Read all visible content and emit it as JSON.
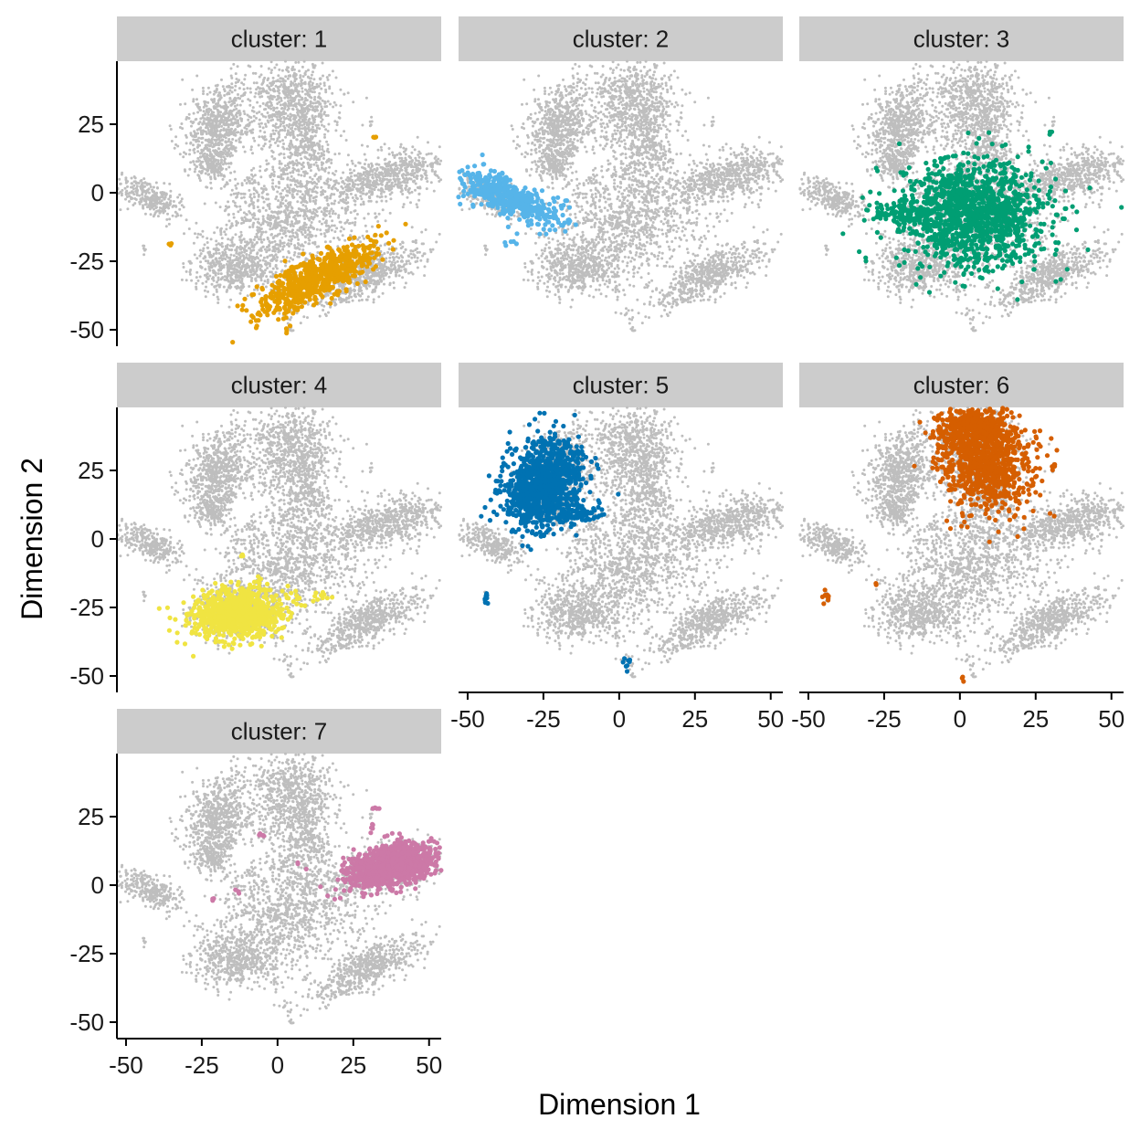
{
  "chart_data": {
    "type": "scatter",
    "facet_variable": "cluster",
    "facets": [
      {
        "label": "cluster: 1",
        "highlight_color": "#E69F00",
        "highlight": [
          {
            "cx": 13,
            "cy": -31,
            "sx": 11,
            "sy": 3.5,
            "rot": 30,
            "n": 700
          },
          {
            "cx": 2,
            "cy": -45,
            "sx": 1.2,
            "sy": 4,
            "rot": 20,
            "n": 12
          },
          {
            "cx": 32,
            "cy": 20,
            "sx": 0.4,
            "sy": 0.4,
            "rot": 0,
            "n": 3
          },
          {
            "cx": -36,
            "cy": -19,
            "sx": 0.5,
            "sy": 0.6,
            "rot": 0,
            "n": 3
          }
        ]
      },
      {
        "label": "cluster: 2",
        "highlight_color": "#56B4E9",
        "highlight": [
          {
            "cx": -38,
            "cy": -1,
            "sx": 9,
            "sy": 3,
            "rot": -28,
            "n": 500
          },
          {
            "cx": -23,
            "cy": -8,
            "sx": 3,
            "sy": 1.5,
            "rot": 0,
            "n": 20
          },
          {
            "cx": -35,
            "cy": -18,
            "sx": 2,
            "sy": 1,
            "rot": 0,
            "n": 6
          },
          {
            "cx": -18,
            "cy": -3,
            "sx": 1,
            "sy": 1,
            "rot": 0,
            "n": 3
          },
          {
            "cx": -17,
            "cy": -11,
            "sx": 0.7,
            "sy": 0.7,
            "rot": 0,
            "n": 3
          }
        ]
      },
      {
        "label": "cluster: 3",
        "highlight_color": "#009E73",
        "highlight": [
          {
            "cx": 5,
            "cy": -8,
            "sx": 12,
            "sy": 10,
            "rot": 0,
            "n": 1300
          },
          {
            "cx": -17,
            "cy": -8,
            "sx": 6,
            "sy": 3,
            "rot": 0,
            "n": 120
          },
          {
            "cx": 30,
            "cy": 22,
            "sx": 0.4,
            "sy": 0.4,
            "rot": 0,
            "n": 3
          }
        ]
      },
      {
        "label": "cluster: 4",
        "highlight_color": "#F0E442",
        "highlight": [
          {
            "cx": -13,
            "cy": -27,
            "sx": 8,
            "sy": 4.5,
            "rot": 5,
            "n": 800
          },
          {
            "cx": -12,
            "cy": -20,
            "sx": 2,
            "sy": 1,
            "rot": 0,
            "n": 20
          },
          {
            "cx": 16,
            "cy": -21,
            "sx": 1.5,
            "sy": 1,
            "rot": 0,
            "n": 8
          },
          {
            "cx": -12,
            "cy": -6,
            "sx": 0.5,
            "sy": 0.5,
            "rot": 0,
            "n": 3
          }
        ]
      },
      {
        "label": "cluster: 5",
        "highlight_color": "#0072B2",
        "highlight": [
          {
            "cx": -25,
            "cy": 20,
            "sx": 6,
            "sy": 8,
            "rot": -20,
            "n": 1100
          },
          {
            "cx": -14,
            "cy": 9,
            "sx": 4,
            "sy": 1.5,
            "rot": 0,
            "n": 80
          },
          {
            "cx": -44,
            "cy": -22,
            "sx": 0.4,
            "sy": 1.2,
            "rot": 0,
            "n": 10
          },
          {
            "cx": 2,
            "cy": -46,
            "sx": 1,
            "sy": 2,
            "rot": 0,
            "n": 8
          },
          {
            "cx": -7,
            "cy": 13,
            "sx": 0.8,
            "sy": 0.8,
            "rot": 0,
            "n": 3
          },
          {
            "cx": -25,
            "cy": 1,
            "sx": 1,
            "sy": 0.5,
            "rot": 0,
            "n": 4
          }
        ]
      },
      {
        "label": "cluster: 6",
        "highlight_color": "#D55E00",
        "highlight": [
          {
            "cx": 8,
            "cy": 30,
            "sx": 7,
            "sy": 10,
            "rot": 18,
            "n": 1000
          },
          {
            "cx": 4,
            "cy": 41,
            "sx": 6,
            "sy": 2.5,
            "rot": 0,
            "n": 250
          },
          {
            "cx": -44,
            "cy": -21,
            "sx": 0.5,
            "sy": 1.2,
            "rot": 0,
            "n": 10
          },
          {
            "cx": 31,
            "cy": 27,
            "sx": 0.7,
            "sy": 0.4,
            "rot": 0,
            "n": 4
          },
          {
            "cx": 1,
            "cy": -51,
            "sx": 0.4,
            "sy": 0.6,
            "rot": 0,
            "n": 3
          },
          {
            "cx": -28,
            "cy": -16,
            "sx": 0.4,
            "sy": 0.4,
            "rot": 0,
            "n": 2
          },
          {
            "cx": 0,
            "cy": 13,
            "sx": 0.3,
            "sy": 0.3,
            "rot": 0,
            "n": 2
          }
        ]
      },
      {
        "label": "cluster: 7",
        "highlight_color": "#CC79A7",
        "highlight": [
          {
            "cx": 37,
            "cy": 7,
            "sx": 8,
            "sy": 3.5,
            "rot": 12,
            "n": 900
          },
          {
            "cx": 42,
            "cy": 10,
            "sx": 3,
            "sy": 3,
            "rot": 0,
            "n": 200
          },
          {
            "cx": 32,
            "cy": 28,
            "sx": 0.6,
            "sy": 0.6,
            "rot": 0,
            "n": 5
          },
          {
            "cx": 31,
            "cy": 21,
            "sx": 0.4,
            "sy": 0.8,
            "rot": 0,
            "n": 5
          },
          {
            "cx": -5,
            "cy": 18,
            "sx": 0.6,
            "sy": 0.8,
            "rot": 0,
            "n": 6
          },
          {
            "cx": -13,
            "cy": -2,
            "sx": 0.5,
            "sy": 0.5,
            "rot": 0,
            "n": 3
          },
          {
            "cx": -21,
            "cy": -5,
            "sx": 0.5,
            "sy": 0.5,
            "rot": 0,
            "n": 3
          },
          {
            "cx": 7,
            "cy": 8,
            "sx": 0.3,
            "sy": 0.3,
            "rot": 0,
            "n": 2
          }
        ]
      }
    ],
    "background_color": "#BEBEBE",
    "background": [
      {
        "cx": -20,
        "cy": 24,
        "sx": 5,
        "sy": 8,
        "rot": -15,
        "n": 700
      },
      {
        "cx": -21,
        "cy": 10,
        "sx": 3,
        "sy": 3,
        "rot": 0,
        "n": 150
      },
      {
        "cx": 5,
        "cy": 32,
        "sx": 7,
        "sy": 9,
        "rot": 15,
        "n": 800
      },
      {
        "cx": 10,
        "cy": 15,
        "sx": 4,
        "sy": 4,
        "rot": 0,
        "n": 150
      },
      {
        "cx": 37,
        "cy": 6,
        "sx": 9,
        "sy": 4,
        "rot": 15,
        "n": 600
      },
      {
        "cx": -42,
        "cy": -2,
        "sx": 6,
        "sy": 2.5,
        "rot": -30,
        "n": 300
      },
      {
        "cx": 5,
        "cy": -7,
        "sx": 12,
        "sy": 10,
        "rot": 0,
        "n": 1000
      },
      {
        "cx": -13,
        "cy": -27,
        "sx": 8,
        "sy": 5,
        "rot": 5,
        "n": 600
      },
      {
        "cx": 30,
        "cy": -30,
        "sx": 10,
        "sy": 3.5,
        "rot": 32,
        "n": 600
      },
      {
        "cx": 4,
        "cy": -47,
        "sx": 1,
        "sy": 4,
        "rot": 15,
        "n": 15
      },
      {
        "cx": -44,
        "cy": -21,
        "sx": 0.4,
        "sy": 1,
        "rot": 0,
        "n": 6
      },
      {
        "cx": 31,
        "cy": 26,
        "sx": 0.5,
        "sy": 1.5,
        "rot": 0,
        "n": 6
      }
    ],
    "x_axis": {
      "title": "Dimension 1",
      "range": [
        -53,
        54
      ],
      "ticks": [
        -50,
        -25,
        0,
        25,
        50
      ],
      "tick_labels": [
        "-50",
        "-25",
        "0",
        "25",
        "50"
      ]
    },
    "y_axis": {
      "title": "Dimension 2",
      "range": [
        -56,
        48
      ],
      "ticks": [
        -50,
        -25,
        0,
        25
      ],
      "tick_labels": [
        "-50",
        "-25",
        "0",
        "25"
      ]
    }
  }
}
